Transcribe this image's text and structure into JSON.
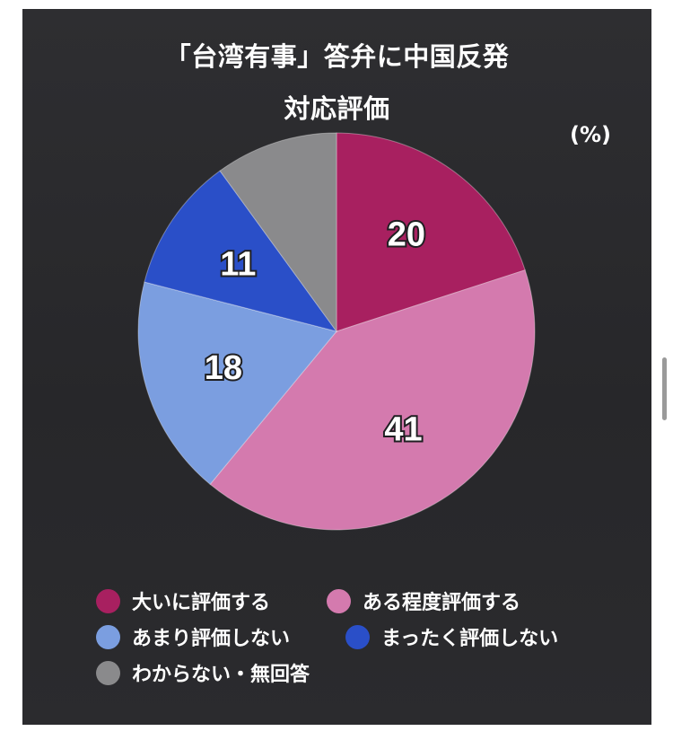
{
  "chart_data": {
    "type": "pie",
    "title": "「台湾有事」答弁に中国反発",
    "subtitle": "対応評価",
    "unit": "(%)",
    "slices": [
      {
        "name": "大いに評価する",
        "value": 20,
        "label": "20",
        "color": "#a82060"
      },
      {
        "name": "ある程度評価する",
        "value": 41,
        "label": "41",
        "color": "#d47aae"
      },
      {
        "name": "あまり評価しない",
        "value": 18,
        "label": "18",
        "color": "#7b9ee0"
      },
      {
        "name": "まったく評価しない",
        "value": 11,
        "label": "11",
        "color": "#2a4fc8"
      },
      {
        "name": "わからない・無回答",
        "value": 10,
        "label": "",
        "color": "#8a8a8c"
      }
    ],
    "start_angle": "12 o'clock",
    "direction": "clockwise"
  }
}
